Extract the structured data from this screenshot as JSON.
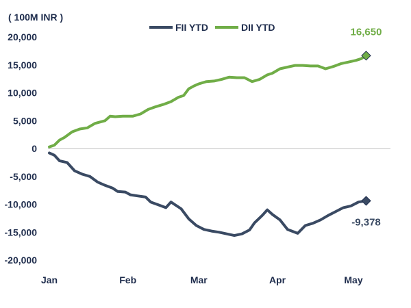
{
  "chart_data": {
    "type": "line",
    "unit_label": "( 100M INR )",
    "x_tick_labels": [
      "Jan",
      "Feb",
      "Mar",
      "Apr",
      "May"
    ],
    "x_tick_days": [
      0,
      31,
      59,
      90,
      120
    ],
    "y_ticks": [
      20000,
      15000,
      10000,
      5000,
      0,
      -5000,
      -10000,
      -15000,
      -20000
    ],
    "y_tick_labels": [
      "20,000",
      "15,000",
      "10,000",
      "5,000",
      "0",
      "-5,000",
      "-10,000",
      "-15,000",
      "-20,000"
    ],
    "ylim": [
      -20000,
      20000
    ],
    "legend_position": "top-center",
    "series": [
      {
        "name": "FII YTD",
        "color": "#3a4a63",
        "end_label": "-9,378",
        "points": [
          [
            0,
            -800
          ],
          [
            2,
            -1200
          ],
          [
            4,
            -2200
          ],
          [
            7,
            -2500
          ],
          [
            10,
            -4000
          ],
          [
            13,
            -4600
          ],
          [
            16,
            -5000
          ],
          [
            19,
            -6000
          ],
          [
            22,
            -6600
          ],
          [
            25,
            -7100
          ],
          [
            27,
            -7700
          ],
          [
            30,
            -7800
          ],
          [
            32,
            -8300
          ],
          [
            35,
            -8500
          ],
          [
            38,
            -8700
          ],
          [
            40,
            -9600
          ],
          [
            43,
            -10100
          ],
          [
            46,
            -10600
          ],
          [
            48,
            -9600
          ],
          [
            52,
            -10800
          ],
          [
            55,
            -12600
          ],
          [
            58,
            -13800
          ],
          [
            61,
            -14500
          ],
          [
            64,
            -14800
          ],
          [
            67,
            -15000
          ],
          [
            70,
            -15300
          ],
          [
            73,
            -15600
          ],
          [
            76,
            -15300
          ],
          [
            79,
            -14600
          ],
          [
            81,
            -13300
          ],
          [
            84,
            -12000
          ],
          [
            86,
            -11000
          ],
          [
            88,
            -11800
          ],
          [
            91,
            -12800
          ],
          [
            94,
            -14500
          ],
          [
            98,
            -15200
          ],
          [
            101,
            -13800
          ],
          [
            104,
            -13400
          ],
          [
            107,
            -12800
          ],
          [
            110,
            -12000
          ],
          [
            113,
            -11300
          ],
          [
            116,
            -10600
          ],
          [
            119,
            -10300
          ],
          [
            122,
            -9600
          ],
          [
            125,
            -9378
          ]
        ]
      },
      {
        "name": "DII YTD",
        "color": "#70ad47",
        "end_label": "16,650",
        "points": [
          [
            0,
            300
          ],
          [
            2,
            600
          ],
          [
            4,
            1500
          ],
          [
            6,
            2000
          ],
          [
            9,
            3000
          ],
          [
            12,
            3500
          ],
          [
            15,
            3700
          ],
          [
            18,
            4500
          ],
          [
            22,
            5000
          ],
          [
            24,
            5800
          ],
          [
            26,
            5700
          ],
          [
            29,
            5800
          ],
          [
            33,
            5800
          ],
          [
            36,
            6200
          ],
          [
            39,
            7000
          ],
          [
            42,
            7500
          ],
          [
            45,
            7900
          ],
          [
            48,
            8400
          ],
          [
            51,
            9200
          ],
          [
            53,
            9500
          ],
          [
            55,
            10700
          ],
          [
            57,
            11200
          ],
          [
            59,
            11600
          ],
          [
            62,
            12000
          ],
          [
            65,
            12100
          ],
          [
            68,
            12400
          ],
          [
            71,
            12800
          ],
          [
            74,
            12700
          ],
          [
            77,
            12700
          ],
          [
            80,
            12000
          ],
          [
            83,
            12400
          ],
          [
            86,
            13200
          ],
          [
            88,
            13500
          ],
          [
            91,
            14300
          ],
          [
            94,
            14600
          ],
          [
            97,
            14900
          ],
          [
            100,
            14900
          ],
          [
            103,
            14800
          ],
          [
            106,
            14800
          ],
          [
            109,
            14300
          ],
          [
            112,
            14700
          ],
          [
            115,
            15200
          ],
          [
            118,
            15500
          ],
          [
            121,
            15800
          ],
          [
            123,
            16100
          ],
          [
            125,
            16650
          ]
        ]
      }
    ]
  }
}
